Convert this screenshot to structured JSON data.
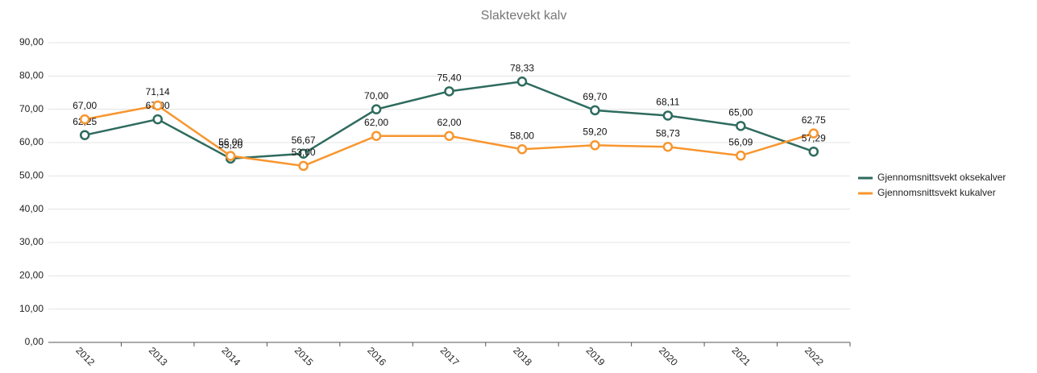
{
  "chart_data": {
    "type": "line",
    "title": "Slaktevekt kalv",
    "categories": [
      "2012",
      "2013",
      "2014",
      "2015",
      "2016",
      "2017",
      "2018",
      "2019",
      "2020",
      "2021",
      "2022"
    ],
    "series": [
      {
        "name": "Gjennomsnittsvekt oksekalver",
        "color": "#2e6b5e",
        "values": [
          62.25,
          67.0,
          55.2,
          56.67,
          70.0,
          75.4,
          78.33,
          69.7,
          68.11,
          65.0,
          57.29
        ],
        "value_labels": [
          "62,25",
          "67,00",
          "55,20",
          "56,67",
          "70,00",
          "75,40",
          "78,33",
          "69,70",
          "68,11",
          "65,00",
          "57,29"
        ]
      },
      {
        "name": "Gjennomsnittsvekt kukalver",
        "color": "#f7962f",
        "values": [
          67.0,
          71.14,
          56.0,
          53.0,
          62.0,
          62.0,
          58.0,
          59.2,
          58.73,
          56.09,
          62.75
        ],
        "value_labels": [
          "67,00",
          "71,14",
          "56,00",
          "53,00",
          "62,00",
          "62,00",
          "58,00",
          "59,20",
          "58,73",
          "56,09",
          "62,75"
        ]
      }
    ],
    "ylim": [
      0,
      90
    ],
    "yticks": [
      {
        "value": 0,
        "label": "0,00"
      },
      {
        "value": 10,
        "label": "10,00"
      },
      {
        "value": 20,
        "label": "20,00"
      },
      {
        "value": 30,
        "label": "30,00"
      },
      {
        "value": 40,
        "label": "40,00"
      },
      {
        "value": 50,
        "label": "50,00"
      },
      {
        "value": 60,
        "label": "60,00"
      },
      {
        "value": 70,
        "label": "70,00"
      },
      {
        "value": 80,
        "label": "80,00"
      },
      {
        "value": 90,
        "label": "90,00"
      }
    ],
    "grid": true,
    "legend": "right"
  }
}
